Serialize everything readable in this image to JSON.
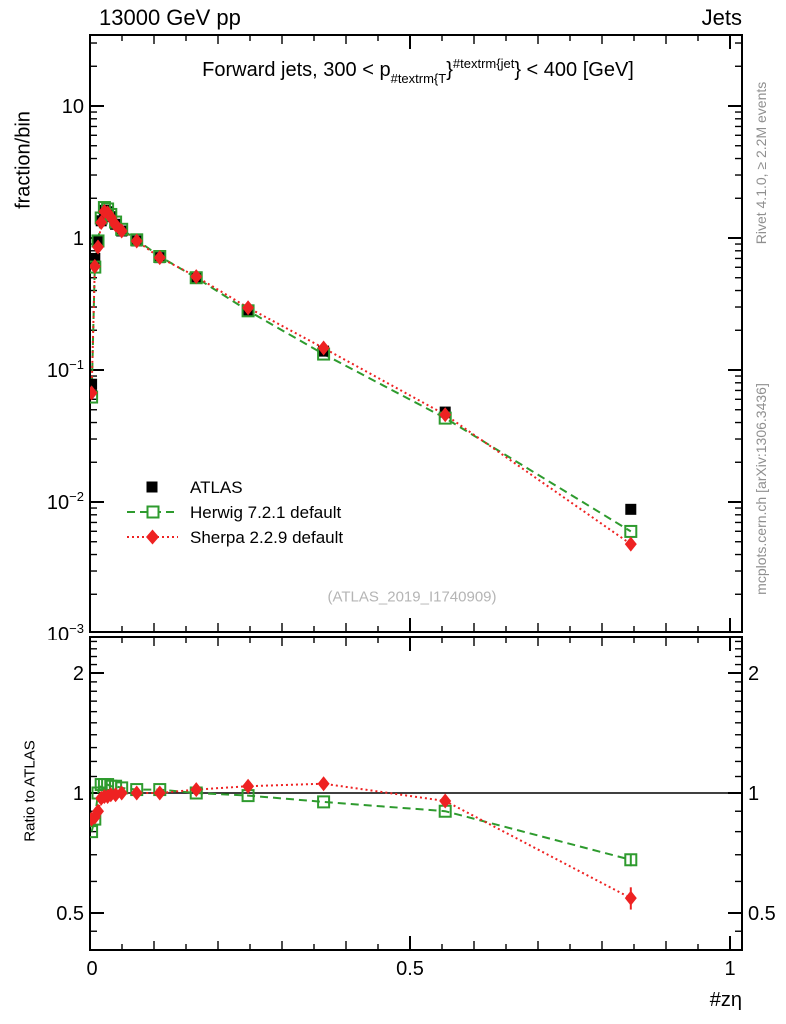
{
  "header": {
    "left": "13000 GeV pp",
    "right": "Jets"
  },
  "title": {
    "pre": "Forward jets, 300 < p",
    "sub": "#textrm{T",
    "brace": "}",
    "sup": "#textrm{jet",
    "post": "} < 400 [GeV]"
  },
  "watermark": "(ATLAS_2019_I1740909)",
  "side_notes": {
    "rivet": "Rivet 4.1.0, ≥ 2.2M events",
    "mcplots": "mcplots.cern.ch [arXiv:1306.3436]"
  },
  "legend": {
    "items": [
      {
        "label": "ATLAS"
      },
      {
        "label": "Herwig 7.2.1 default"
      },
      {
        "label": "Sherpa 2.2.9 default"
      }
    ]
  },
  "colors": {
    "atlas": "#000000",
    "herwig": "#2e9b2e",
    "sherpa": "#ee2222",
    "note_gray": "#8f8f8f",
    "watermark_gray": "#b5b5b5"
  },
  "chart_data": {
    "type": "line",
    "x": [
      0.0025,
      0.0075,
      0.0125,
      0.0175,
      0.0225,
      0.0275,
      0.0325,
      0.04,
      0.0495,
      0.073,
      0.109,
      0.166,
      0.247,
      0.365,
      0.555,
      0.845
    ],
    "series": [
      {
        "name": "ATLAS",
        "marker": "filled-square",
        "line": "none",
        "values": [
          0.078,
          0.7,
          0.95,
          1.35,
          1.62,
          1.58,
          1.45,
          1.27,
          1.13,
          0.95,
          0.71,
          0.5,
          0.285,
          0.139,
          0.048,
          0.0088
        ]
      },
      {
        "name": "Herwig 7.2.1 default",
        "marker": "open-square",
        "line": "dashed",
        "ratio_to_atlas": [
          0.8,
          0.86,
          1.0,
          1.05,
          1.05,
          1.05,
          1.04,
          1.04,
          1.03,
          1.02,
          1.02,
          1.0,
          0.985,
          0.95,
          0.9,
          0.68
        ],
        "ratio_err": [
          0,
          0,
          0,
          0,
          0,
          0,
          0,
          0,
          0,
          0,
          0,
          0,
          0,
          0,
          0,
          0.025
        ]
      },
      {
        "name": "Sherpa 2.2.9 default",
        "marker": "filled-diamond",
        "line": "dotted",
        "ratio_to_atlas": [
          0.86,
          0.87,
          0.9,
          0.97,
          0.98,
          0.98,
          0.99,
          0.99,
          1.0,
          1.0,
          1.0,
          1.02,
          1.04,
          1.055,
          0.955,
          0.545
        ],
        "ratio_err": [
          0,
          0,
          0,
          0,
          0,
          0,
          0,
          0,
          0,
          0,
          0,
          0,
          0,
          0.012,
          0,
          0.035
        ]
      }
    ],
    "x_axis": {
      "label": "#zη",
      "min": 0,
      "max": 1.019,
      "majors": [
        0,
        0.5,
        1
      ],
      "major_labels": [
        "0",
        "0.5",
        "1"
      ],
      "minor_step": 0.05
    },
    "main_axis": {
      "ylabel": "fraction/bin",
      "scale": "log",
      "ymin": 0.00104,
      "ymax": 34.5,
      "major_exponents": [
        1,
        0,
        -1,
        -2,
        -3
      ]
    },
    "ratio_axis": {
      "ylabel": "Ratio to ATLAS",
      "scale": "log",
      "ymin": 0.405,
      "ymax": 2.46,
      "majors": [
        2,
        1,
        0.5
      ],
      "major_labels": [
        "2",
        "1",
        "0.5"
      ],
      "reference_line": 1
    }
  }
}
